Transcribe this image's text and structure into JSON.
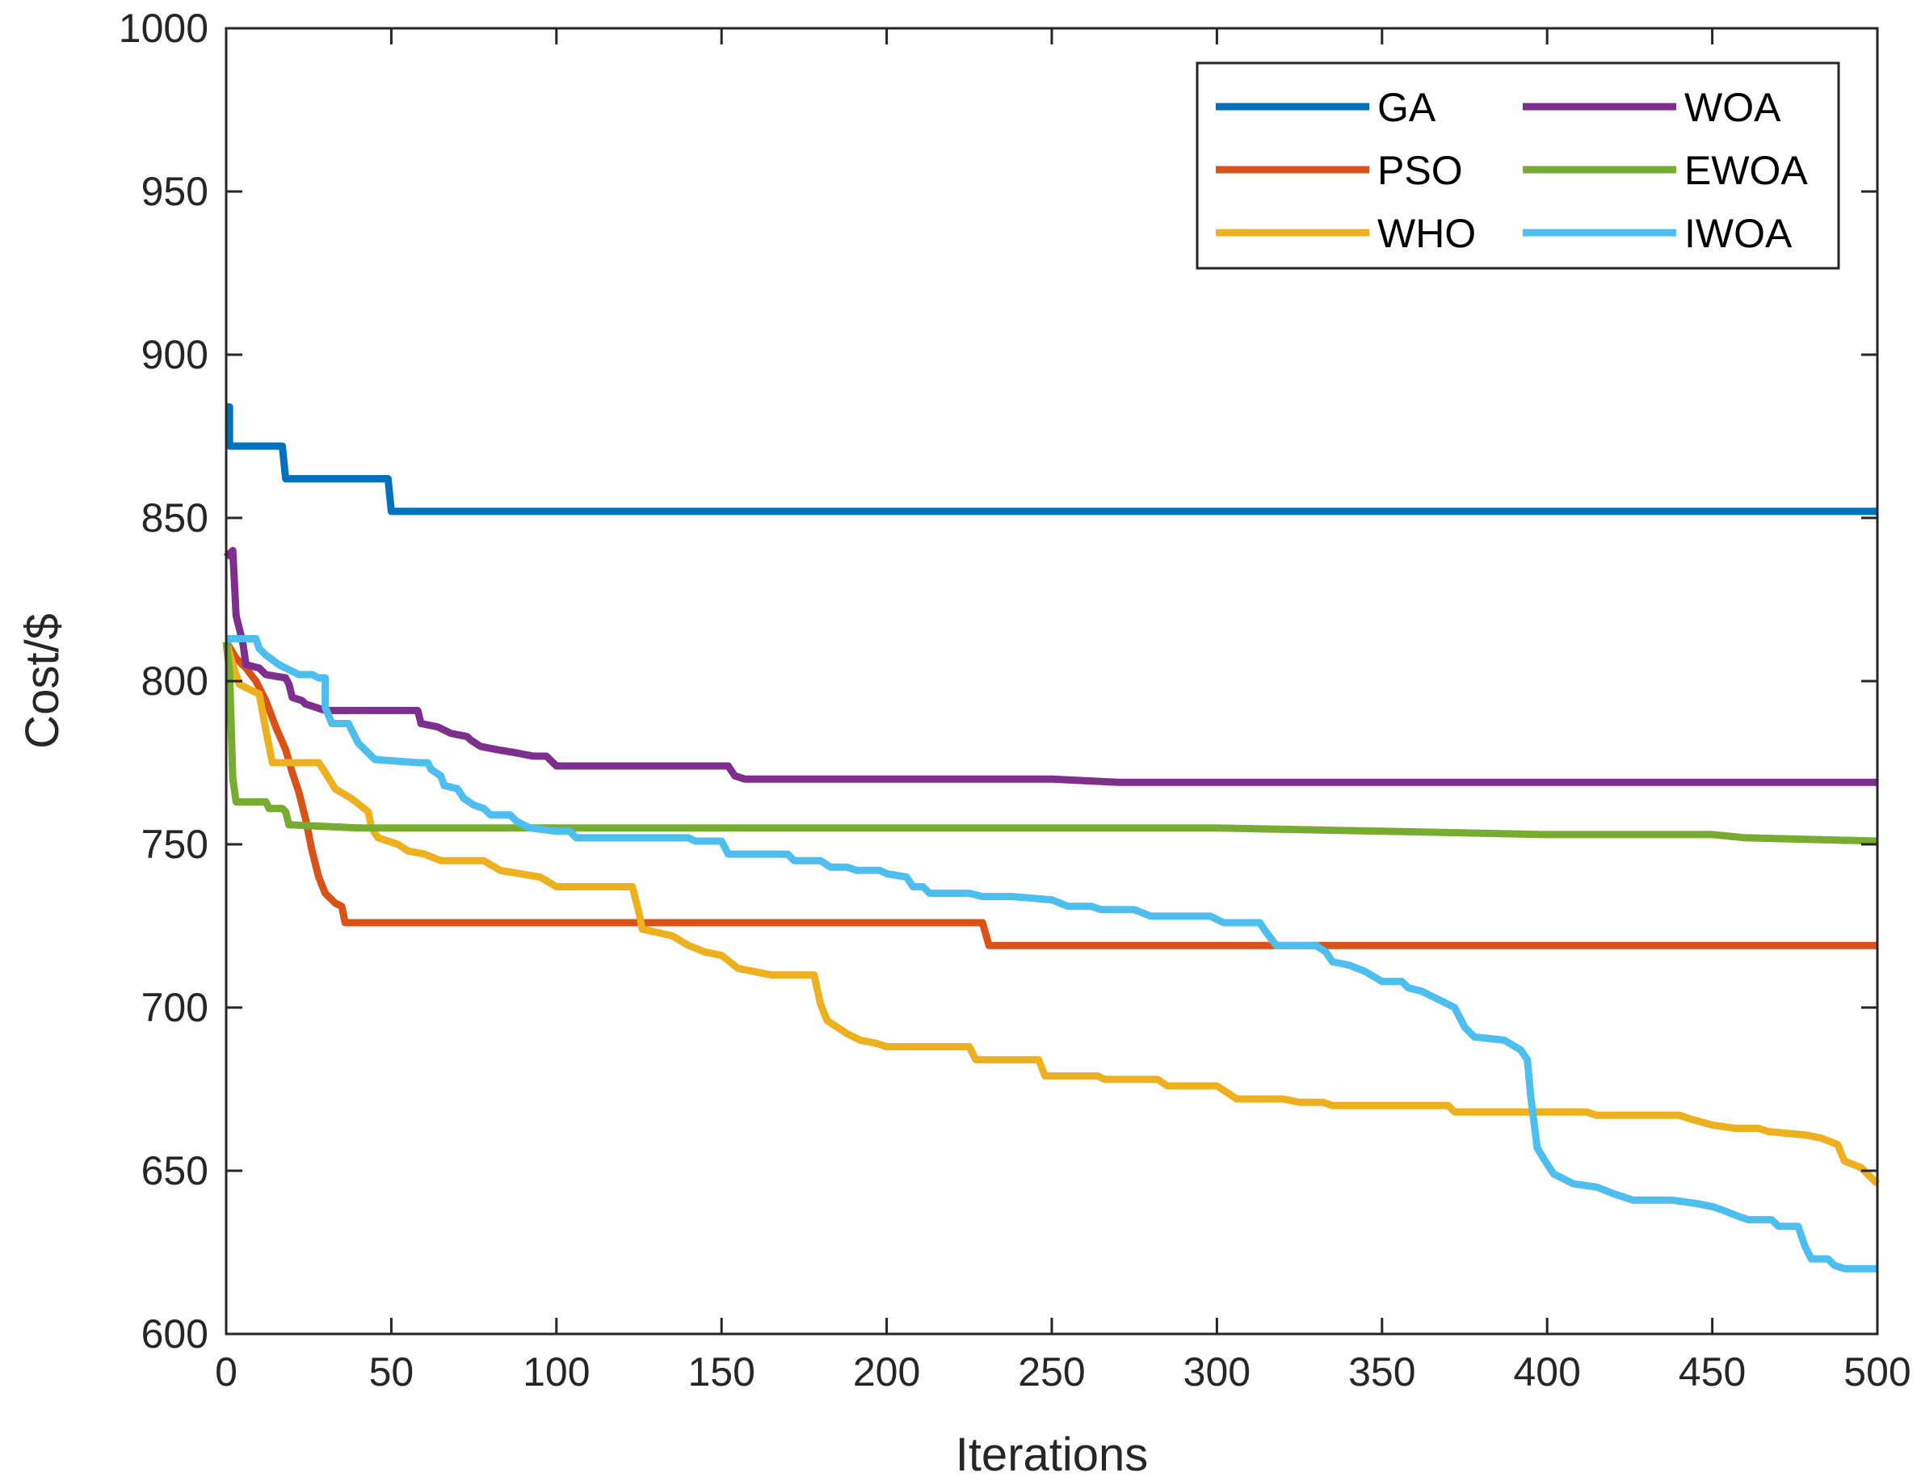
{
  "chart_data": {
    "type": "line",
    "title": "",
    "xlabel": "Iterations",
    "ylabel": "Cost/$",
    "xlim": [
      0,
      500
    ],
    "ylim": [
      600,
      1000
    ],
    "xticks": [
      0,
      50,
      100,
      150,
      200,
      250,
      300,
      350,
      400,
      450,
      500
    ],
    "yticks": [
      600,
      650,
      700,
      750,
      800,
      850,
      900,
      950,
      1000
    ],
    "grid": false,
    "legend_position": "top-right",
    "series": [
      {
        "name": "GA",
        "color": "#0072BD",
        "points": [
          [
            0,
            884
          ],
          [
            1,
            884
          ],
          [
            1,
            872
          ],
          [
            17,
            872
          ],
          [
            18,
            862
          ],
          [
            49,
            862
          ],
          [
            50,
            852
          ],
          [
            500,
            852
          ]
        ]
      },
      {
        "name": "PSO",
        "color": "#D95319",
        "points": [
          [
            0,
            812
          ],
          [
            3,
            807
          ],
          [
            6,
            804
          ],
          [
            9,
            800
          ],
          [
            12,
            794
          ],
          [
            15,
            786
          ],
          [
            18,
            779
          ],
          [
            20,
            772
          ],
          [
            22,
            766
          ],
          [
            24,
            758
          ],
          [
            26,
            748
          ],
          [
            28,
            740
          ],
          [
            30,
            735
          ],
          [
            33,
            732
          ],
          [
            35,
            731
          ],
          [
            36,
            726
          ],
          [
            100,
            726
          ],
          [
            229,
            726
          ],
          [
            231,
            719
          ],
          [
            500,
            719
          ]
        ]
      },
      {
        "name": "WHO",
        "color": "#EDB120",
        "points": [
          [
            0,
            812
          ],
          [
            2,
            805
          ],
          [
            4,
            799
          ],
          [
            10,
            796
          ],
          [
            12,
            785
          ],
          [
            14,
            775
          ],
          [
            28,
            775
          ],
          [
            30,
            772
          ],
          [
            33,
            767
          ],
          [
            38,
            764
          ],
          [
            43,
            760
          ],
          [
            44,
            755
          ],
          [
            46,
            752
          ],
          [
            52,
            750
          ],
          [
            55,
            748
          ],
          [
            60,
            747
          ],
          [
            65,
            745
          ],
          [
            78,
            745
          ],
          [
            83,
            742
          ],
          [
            95,
            740
          ],
          [
            100,
            737
          ],
          [
            107,
            737
          ],
          [
            110,
            737
          ],
          [
            123,
            737
          ],
          [
            125,
            729
          ],
          [
            126,
            724
          ],
          [
            135,
            722
          ],
          [
            140,
            719
          ],
          [
            145,
            717
          ],
          [
            150,
            716
          ],
          [
            155,
            712
          ],
          [
            160,
            711
          ],
          [
            165,
            710
          ],
          [
            170,
            710
          ],
          [
            178,
            710
          ],
          [
            180,
            701
          ],
          [
            182,
            696
          ],
          [
            188,
            692
          ],
          [
            192,
            690
          ],
          [
            197,
            689
          ],
          [
            200,
            688
          ],
          [
            225,
            688
          ],
          [
            227,
            684
          ],
          [
            246,
            684
          ],
          [
            248,
            679
          ],
          [
            264,
            679
          ],
          [
            266,
            678
          ],
          [
            282,
            678
          ],
          [
            285,
            676
          ],
          [
            300,
            676
          ],
          [
            303,
            674
          ],
          [
            306,
            672
          ],
          [
            320,
            672
          ],
          [
            325,
            671
          ],
          [
            332,
            671
          ],
          [
            335,
            670
          ],
          [
            370,
            670
          ],
          [
            372,
            668
          ],
          [
            388,
            668
          ],
          [
            390,
            668
          ],
          [
            412,
            668
          ],
          [
            415,
            667
          ],
          [
            440,
            667
          ],
          [
            443,
            666
          ],
          [
            450,
            664
          ],
          [
            457,
            663
          ],
          [
            464,
            663
          ],
          [
            467,
            662
          ],
          [
            478,
            661
          ],
          [
            483,
            660
          ],
          [
            488,
            658
          ],
          [
            490,
            653
          ],
          [
            495,
            651
          ],
          [
            500,
            646
          ]
        ]
      },
      {
        "name": "WOA",
        "color": "#7E2F8E",
        "points": [
          [
            0,
            838
          ],
          [
            2,
            840
          ],
          [
            3,
            820
          ],
          [
            5,
            812
          ],
          [
            6,
            805
          ],
          [
            10,
            804
          ],
          [
            12,
            802
          ],
          [
            18,
            801
          ],
          [
            19,
            799
          ],
          [
            20,
            795
          ],
          [
            23,
            794
          ],
          [
            24,
            793
          ],
          [
            27,
            792
          ],
          [
            30,
            791
          ],
          [
            58,
            791
          ],
          [
            59,
            787
          ],
          [
            64,
            786
          ],
          [
            68,
            784
          ],
          [
            73,
            783
          ],
          [
            74,
            782
          ],
          [
            77,
            780
          ],
          [
            82,
            779
          ],
          [
            88,
            778
          ],
          [
            93,
            777
          ],
          [
            97,
            777
          ],
          [
            100,
            774
          ],
          [
            103,
            774
          ],
          [
            152,
            774
          ],
          [
            154,
            771
          ],
          [
            157,
            770
          ],
          [
            200,
            770
          ],
          [
            250,
            770
          ],
          [
            270,
            769
          ],
          [
            500,
            769
          ]
        ]
      },
      {
        "name": "EWOA",
        "color": "#77AC30",
        "points": [
          [
            0,
            812
          ],
          [
            1,
            803
          ],
          [
            2,
            770
          ],
          [
            3,
            763
          ],
          [
            12,
            763
          ],
          [
            13,
            761
          ],
          [
            17,
            761
          ],
          [
            18,
            760
          ],
          [
            19,
            756
          ],
          [
            40,
            755
          ],
          [
            100,
            755
          ],
          [
            200,
            755
          ],
          [
            300,
            755
          ],
          [
            350,
            754
          ],
          [
            400,
            753
          ],
          [
            450,
            753
          ],
          [
            460,
            752
          ],
          [
            500,
            751
          ]
        ]
      },
      {
        "name": "IWOA",
        "color": "#4DBEEE",
        "points": [
          [
            0,
            813
          ],
          [
            9,
            813
          ],
          [
            10,
            810
          ],
          [
            12,
            808
          ],
          [
            16,
            805
          ],
          [
            18,
            804
          ],
          [
            22,
            802
          ],
          [
            26,
            802
          ],
          [
            28,
            801
          ],
          [
            30,
            801
          ],
          [
            30,
            792
          ],
          [
            32,
            787
          ],
          [
            37,
            787
          ],
          [
            40,
            781
          ],
          [
            45,
            776
          ],
          [
            58,
            775
          ],
          [
            61,
            775
          ],
          [
            62,
            773
          ],
          [
            65,
            771
          ],
          [
            66,
            768
          ],
          [
            70,
            767
          ],
          [
            72,
            764
          ],
          [
            75,
            762
          ],
          [
            78,
            761
          ],
          [
            80,
            759
          ],
          [
            86,
            759
          ],
          [
            88,
            757
          ],
          [
            92,
            755
          ],
          [
            100,
            754
          ],
          [
            104,
            754
          ],
          [
            106,
            752
          ],
          [
            140,
            752
          ],
          [
            142,
            751
          ],
          [
            150,
            751
          ],
          [
            152,
            747
          ],
          [
            170,
            747
          ],
          [
            172,
            745
          ],
          [
            180,
            745
          ],
          [
            183,
            743
          ],
          [
            188,
            743
          ],
          [
            191,
            742
          ],
          [
            198,
            742
          ],
          [
            200,
            741
          ],
          [
            206,
            740
          ],
          [
            208,
            737
          ],
          [
            211,
            737
          ],
          [
            213,
            735
          ],
          [
            225,
            735
          ],
          [
            229,
            734
          ],
          [
            238,
            734
          ],
          [
            250,
            733
          ],
          [
            255,
            731
          ],
          [
            262,
            731
          ],
          [
            265,
            730
          ],
          [
            275,
            730
          ],
          [
            280,
            728
          ],
          [
            298,
            728
          ],
          [
            302,
            726
          ],
          [
            313,
            726
          ],
          [
            315,
            723
          ],
          [
            318,
            719
          ],
          [
            330,
            719
          ],
          [
            333,
            717
          ],
          [
            335,
            714
          ],
          [
            340,
            713
          ],
          [
            345,
            711
          ],
          [
            350,
            708
          ],
          [
            356,
            708
          ],
          [
            358,
            706
          ],
          [
            362,
            705
          ],
          [
            368,
            702
          ],
          [
            372,
            700
          ],
          [
            375,
            694
          ],
          [
            378,
            691
          ],
          [
            387,
            690
          ],
          [
            392,
            687
          ],
          [
            394,
            684
          ],
          [
            395,
            673
          ],
          [
            396,
            665
          ],
          [
            397,
            657
          ],
          [
            400,
            652
          ],
          [
            402,
            649
          ],
          [
            408,
            646
          ],
          [
            415,
            645
          ],
          [
            420,
            643
          ],
          [
            426,
            641
          ],
          [
            438,
            641
          ],
          [
            445,
            640
          ],
          [
            450,
            639
          ],
          [
            453,
            638
          ],
          [
            458,
            636
          ],
          [
            461,
            635
          ],
          [
            468,
            635
          ],
          [
            470,
            633
          ],
          [
            476,
            633
          ],
          [
            478,
            627
          ],
          [
            480,
            623
          ],
          [
            485,
            623
          ],
          [
            487,
            621
          ],
          [
            490,
            620
          ],
          [
            500,
            620
          ]
        ]
      }
    ]
  }
}
